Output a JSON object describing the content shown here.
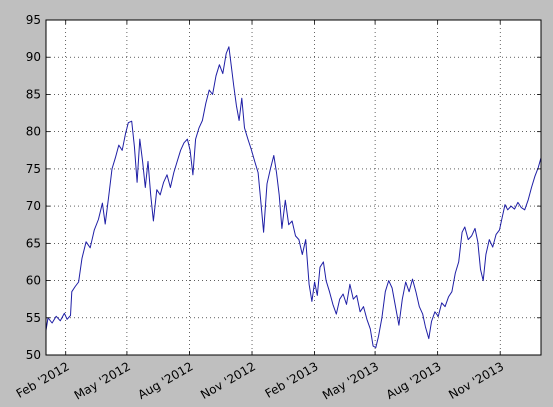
{
  "chart_data": {
    "type": "line",
    "title": "",
    "xlabel": "",
    "ylabel": "",
    "ylim": [
      50,
      95
    ],
    "xlim": [
      "2012-01-03",
      "2013-12-31"
    ],
    "grid": true,
    "legend": "none",
    "y_ticks": [
      50,
      55,
      60,
      65,
      70,
      75,
      80,
      85,
      90,
      95
    ],
    "x_ticks": [
      {
        "date": "2012-02-01",
        "label": "Feb '2012"
      },
      {
        "date": "2012-05-01",
        "label": "May '2012"
      },
      {
        "date": "2012-08-01",
        "label": "Aug '2012"
      },
      {
        "date": "2012-11-01",
        "label": "Nov '2012"
      },
      {
        "date": "2013-02-01",
        "label": "Feb '2013"
      },
      {
        "date": "2013-05-01",
        "label": "May '2013"
      },
      {
        "date": "2013-08-01",
        "label": "Aug '2013"
      },
      {
        "date": "2013-11-01",
        "label": "Nov '2013"
      }
    ],
    "series": [
      {
        "color": "#1f1fa6",
        "points": [
          [
            "2012-01-03",
            53.3
          ],
          [
            "2012-01-06",
            55.0
          ],
          [
            "2012-01-12",
            54.3
          ],
          [
            "2012-01-18",
            55.2
          ],
          [
            "2012-01-24",
            54.6
          ],
          [
            "2012-01-30",
            55.6
          ],
          [
            "2012-02-03",
            54.8
          ],
          [
            "2012-02-08",
            55.3
          ],
          [
            "2012-02-10",
            58.5
          ],
          [
            "2012-02-15",
            59.2
          ],
          [
            "2012-02-20",
            59.8
          ],
          [
            "2012-02-25",
            63.0
          ],
          [
            "2012-03-02",
            65.2
          ],
          [
            "2012-03-08",
            64.4
          ],
          [
            "2012-03-14",
            66.8
          ],
          [
            "2012-03-20",
            68.2
          ],
          [
            "2012-03-26",
            70.4
          ],
          [
            "2012-03-30",
            67.6
          ],
          [
            "2012-04-04",
            71.2
          ],
          [
            "2012-04-09",
            75.0
          ],
          [
            "2012-04-14",
            76.5
          ],
          [
            "2012-04-19",
            78.2
          ],
          [
            "2012-04-24",
            77.5
          ],
          [
            "2012-04-29",
            79.8
          ],
          [
            "2012-05-03",
            81.2
          ],
          [
            "2012-05-08",
            81.4
          ],
          [
            "2012-05-12",
            78.0
          ],
          [
            "2012-05-16",
            73.2
          ],
          [
            "2012-05-20",
            79.0
          ],
          [
            "2012-05-24",
            76.0
          ],
          [
            "2012-05-28",
            72.5
          ],
          [
            "2012-06-01",
            76.0
          ],
          [
            "2012-06-05",
            71.5
          ],
          [
            "2012-06-09",
            68.0
          ],
          [
            "2012-06-14",
            72.2
          ],
          [
            "2012-06-19",
            71.5
          ],
          [
            "2012-06-24",
            73.2
          ],
          [
            "2012-06-29",
            74.2
          ],
          [
            "2012-07-04",
            72.5
          ],
          [
            "2012-07-09",
            74.5
          ],
          [
            "2012-07-14",
            76.0
          ],
          [
            "2012-07-19",
            77.5
          ],
          [
            "2012-07-24",
            78.5
          ],
          [
            "2012-07-29",
            79.0
          ],
          [
            "2012-08-02",
            77.5
          ],
          [
            "2012-08-06",
            74.2
          ],
          [
            "2012-08-10",
            79.0
          ],
          [
            "2012-08-15",
            80.5
          ],
          [
            "2012-08-20",
            81.5
          ],
          [
            "2012-08-25",
            83.8
          ],
          [
            "2012-08-30",
            85.6
          ],
          [
            "2012-09-04",
            85.0
          ],
          [
            "2012-09-09",
            87.5
          ],
          [
            "2012-09-14",
            89.0
          ],
          [
            "2012-09-19",
            87.8
          ],
          [
            "2012-09-24",
            90.5
          ],
          [
            "2012-09-28",
            91.4
          ],
          [
            "2012-10-02",
            88.5
          ],
          [
            "2012-10-05",
            86.2
          ],
          [
            "2012-10-09",
            83.5
          ],
          [
            "2012-10-13",
            81.5
          ],
          [
            "2012-10-17",
            84.5
          ],
          [
            "2012-10-21",
            80.5
          ],
          [
            "2012-10-26",
            79.0
          ],
          [
            "2012-10-31",
            77.6
          ],
          [
            "2012-11-05",
            76.0
          ],
          [
            "2012-11-10",
            74.5
          ],
          [
            "2012-11-14",
            70.5
          ],
          [
            "2012-11-18",
            66.5
          ],
          [
            "2012-11-23",
            73.0
          ],
          [
            "2012-11-28",
            75.0
          ],
          [
            "2012-12-03",
            76.8
          ],
          [
            "2012-12-07",
            74.5
          ],
          [
            "2012-12-11",
            71.5
          ],
          [
            "2012-12-15",
            67.0
          ],
          [
            "2012-12-20",
            70.8
          ],
          [
            "2012-12-25",
            67.5
          ],
          [
            "2012-12-30",
            68.0
          ],
          [
            "2013-01-04",
            66.0
          ],
          [
            "2013-01-09",
            65.5
          ],
          [
            "2013-01-14",
            63.5
          ],
          [
            "2013-01-19",
            65.5
          ],
          [
            "2013-01-24",
            59.5
          ],
          [
            "2013-01-28",
            57.2
          ],
          [
            "2013-02-01",
            59.8
          ],
          [
            "2013-02-05",
            58.0
          ],
          [
            "2013-02-09",
            61.8
          ],
          [
            "2013-02-14",
            62.5
          ],
          [
            "2013-02-18",
            60.0
          ],
          [
            "2013-02-23",
            58.5
          ],
          [
            "2013-02-28",
            56.8
          ],
          [
            "2013-03-05",
            55.5
          ],
          [
            "2013-03-10",
            57.5
          ],
          [
            "2013-03-15",
            58.2
          ],
          [
            "2013-03-20",
            56.8
          ],
          [
            "2013-03-25",
            59.5
          ],
          [
            "2013-03-30",
            57.5
          ],
          [
            "2013-04-04",
            58.0
          ],
          [
            "2013-04-09",
            55.8
          ],
          [
            "2013-04-14",
            56.5
          ],
          [
            "2013-04-19",
            54.8
          ],
          [
            "2013-04-24",
            53.5
          ],
          [
            "2013-04-28",
            51.2
          ],
          [
            "2013-05-02",
            51.0
          ],
          [
            "2013-05-06",
            52.5
          ],
          [
            "2013-05-11",
            55.0
          ],
          [
            "2013-05-16",
            58.5
          ],
          [
            "2013-05-21",
            60.0
          ],
          [
            "2013-05-26",
            59.0
          ],
          [
            "2013-05-31",
            56.5
          ],
          [
            "2013-06-05",
            54.0
          ],
          [
            "2013-06-10",
            57.5
          ],
          [
            "2013-06-15",
            59.8
          ],
          [
            "2013-06-20",
            58.5
          ],
          [
            "2013-06-25",
            60.2
          ],
          [
            "2013-06-30",
            58.5
          ],
          [
            "2013-07-05",
            56.5
          ],
          [
            "2013-07-10",
            55.5
          ],
          [
            "2013-07-14",
            53.8
          ],
          [
            "2013-07-19",
            52.2
          ],
          [
            "2013-07-23",
            54.5
          ],
          [
            "2013-07-28",
            55.8
          ],
          [
            "2013-08-02",
            55.2
          ],
          [
            "2013-08-07",
            57.0
          ],
          [
            "2013-08-12",
            56.5
          ],
          [
            "2013-08-17",
            57.8
          ],
          [
            "2013-08-22",
            58.5
          ],
          [
            "2013-08-27",
            61.0
          ],
          [
            "2013-09-01",
            62.5
          ],
          [
            "2013-09-06",
            66.5
          ],
          [
            "2013-09-10",
            67.2
          ],
          [
            "2013-09-15",
            65.5
          ],
          [
            "2013-09-20",
            66.0
          ],
          [
            "2013-09-25",
            67.0
          ],
          [
            "2013-09-29",
            65.2
          ],
          [
            "2013-10-03",
            61.5
          ],
          [
            "2013-10-07",
            60.0
          ],
          [
            "2013-10-11",
            63.5
          ],
          [
            "2013-10-16",
            65.5
          ],
          [
            "2013-10-21",
            64.5
          ],
          [
            "2013-10-26",
            66.2
          ],
          [
            "2013-10-31",
            66.8
          ],
          [
            "2013-11-04",
            68.5
          ],
          [
            "2013-11-08",
            70.2
          ],
          [
            "2013-11-12",
            69.5
          ],
          [
            "2013-11-17",
            70.0
          ],
          [
            "2013-11-22",
            69.6
          ],
          [
            "2013-11-27",
            70.5
          ],
          [
            "2013-12-02",
            69.8
          ],
          [
            "2013-12-07",
            69.5
          ],
          [
            "2013-12-12",
            70.8
          ],
          [
            "2013-12-17",
            72.5
          ],
          [
            "2013-12-22",
            74.0
          ],
          [
            "2013-12-27",
            75.2
          ],
          [
            "2013-12-31",
            76.5
          ]
        ]
      }
    ]
  }
}
